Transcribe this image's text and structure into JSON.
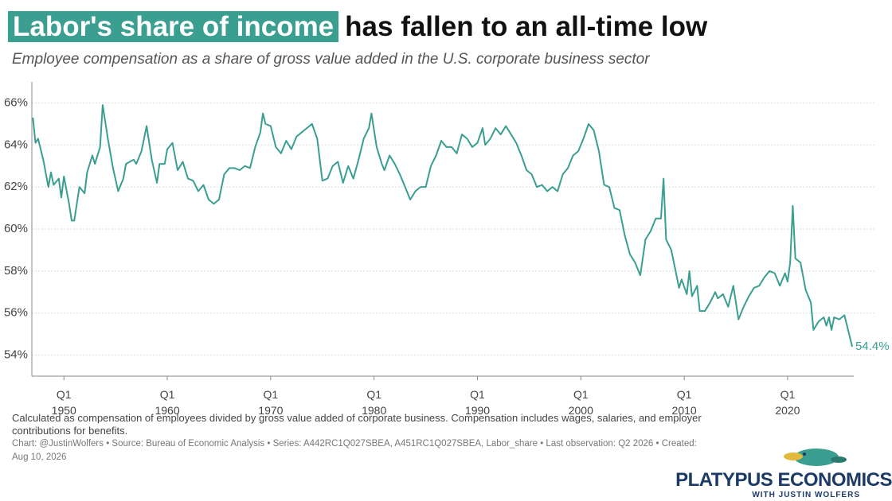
{
  "chart_data": {
    "type": "line",
    "title": [
      "Labor's share of income",
      "has fallen to an all-time low"
    ],
    "subtitle": "Employee compensation as a share of gross value added in the U.S. corporate business sector",
    "note": "Calculated as compensation of employees divided by gross value added of corporate business. Compensation includes wages, salaries, and employer contributions for benefits.",
    "credit": "Chart: @JustinWolfers • Source: Bureau of Economic Analysis • Series: A442RC1Q027SBEA, A451RC1Q027SBEA, Labor_share • Last observation: Q2 2026 • Created: Aug 10, 2026",
    "logo": {
      "name": "PLATYPUS ECONOMICS",
      "tagline": "WITH JUSTIN WOLFERS"
    },
    "xlim": [
      1946.9,
      2026.4
    ],
    "xticks": [
      {
        "value": 1950,
        "label": "Q1\n1950"
      },
      {
        "value": 1960,
        "label": "Q1\n1960"
      },
      {
        "value": 1970,
        "label": "Q1\n1970"
      },
      {
        "value": 1980,
        "label": "Q1\n1980"
      },
      {
        "value": 1990,
        "label": "Q1\n1990"
      },
      {
        "value": 2000,
        "label": "Q1\n2000"
      },
      {
        "value": 2010,
        "label": "Q1\n2010"
      },
      {
        "value": 2020,
        "label": "Q1\n2020"
      }
    ],
    "ylim": [
      53,
      67
    ],
    "yticks": [
      {
        "value": 54,
        "label": "54%"
      },
      {
        "value": 56,
        "label": "56%"
      },
      {
        "value": 58,
        "label": "58%"
      },
      {
        "value": 60,
        "label": "60%"
      },
      {
        "value": 62,
        "label": "62%"
      },
      {
        "value": 64,
        "label": "64%"
      },
      {
        "value": 66,
        "label": "66%"
      }
    ],
    "grid": true,
    "x": [
      1947.0,
      1947.25,
      1947.5,
      1948,
      1948.5,
      1948.75,
      1949,
      1949.5,
      1949.75,
      1950,
      1950.5,
      1950.75,
      1951,
      1951.5,
      1952,
      1952.25,
      1952.75,
      1953,
      1953.5,
      1953.75,
      1954.25,
      1954.75,
      1955.25,
      1955.75,
      1956,
      1956.75,
      1957,
      1957.5,
      1958,
      1958.5,
      1959,
      1959.25,
      1959.75,
      1960,
      1960.5,
      1961,
      1961.5,
      1962,
      1962.5,
      1963,
      1963.5,
      1964,
      1964.5,
      1965,
      1965.5,
      1966,
      1966.5,
      1967,
      1967.5,
      1968,
      1968.5,
      1969,
      1969.25,
      1969.5,
      1970,
      1970.5,
      1971,
      1971.5,
      1972,
      1972.5,
      1973,
      1973.5,
      1974,
      1974.5,
      1975,
      1975.5,
      1976,
      1976.5,
      1977,
      1977.5,
      1978,
      1978.5,
      1979,
      1979.5,
      1979.75,
      1980.25,
      1980.75,
      1981,
      1981.5,
      1982,
      1982.5,
      1983,
      1983.5,
      1984,
      1984.5,
      1985,
      1985.5,
      1986,
      1986.5,
      1987,
      1987.5,
      1988,
      1988.5,
      1989,
      1989.5,
      1990,
      1990.5,
      1990.75,
      1991.25,
      1991.75,
      1992.25,
      1992.75,
      1993.25,
      1993.75,
      1994.25,
      1994.75,
      1995.25,
      1995.75,
      1996.25,
      1996.75,
      1997.25,
      1997.75,
      1998.25,
      1998.75,
      1999.25,
      1999.75,
      2000.25,
      2000.75,
      2001.25,
      2001.75,
      2002.25,
      2002.75,
      2003.25,
      2003.75,
      2004.25,
      2004.75,
      2005.25,
      2005.75,
      2006.25,
      2006.75,
      2007.25,
      2007.75,
      2008,
      2008.25,
      2008.75,
      2009.25,
      2009.5,
      2009.75,
      2010.25,
      2010.5,
      2010.75,
      2011.25,
      2011.5,
      2012,
      2012.5,
      2013,
      2013.25,
      2013.75,
      2014.25,
      2014.75,
      2015.25,
      2015.75,
      2016.25,
      2016.75,
      2017.25,
      2017.75,
      2018.25,
      2018.75,
      2019.25,
      2019.75,
      2020,
      2020.25,
      2020.5,
      2020.75,
      2021.25,
      2021.75,
      2022.25,
      2022.5,
      2023,
      2023.5,
      2023.75,
      2024,
      2024.25,
      2024.5,
      2025,
      2025.5,
      2026.25
    ],
    "series": [
      {
        "name": "Labor share",
        "color": "#3a9e91",
        "values": [
          65.3,
          64.1,
          64.3,
          63.3,
          62.0,
          62.7,
          62.1,
          62.4,
          61.5,
          62.5,
          61.2,
          60.4,
          60.4,
          62.0,
          61.7,
          62.7,
          63.5,
          63.1,
          63.9,
          65.9,
          64.3,
          62.9,
          61.8,
          62.4,
          63.1,
          63.3,
          63.1,
          63.7,
          64.9,
          63.3,
          62.2,
          63.1,
          63.1,
          63.8,
          64.1,
          62.8,
          63.2,
          62.4,
          62.3,
          61.8,
          62.1,
          61.4,
          61.2,
          61.4,
          62.6,
          62.9,
          62.9,
          62.8,
          63.0,
          62.9,
          63.9,
          64.6,
          65.5,
          65.0,
          64.9,
          63.9,
          63.6,
          64.2,
          63.8,
          64.4,
          64.6,
          64.8,
          65.0,
          64.3,
          62.3,
          62.4,
          63.0,
          63.2,
          62.2,
          63.0,
          62.4,
          63.3,
          64.3,
          64.8,
          65.5,
          63.9,
          63.1,
          62.8,
          63.5,
          63.1,
          62.6,
          62.0,
          61.4,
          61.8,
          62.0,
          62.0,
          63.0,
          63.5,
          64.2,
          63.9,
          63.9,
          63.6,
          64.5,
          64.3,
          63.9,
          64.1,
          64.8,
          64.0,
          64.3,
          64.8,
          64.5,
          64.9,
          64.5,
          64.1,
          63.5,
          62.8,
          62.6,
          62.0,
          62.1,
          61.8,
          62.0,
          61.8,
          62.6,
          62.9,
          63.5,
          63.7,
          64.3,
          65.0,
          64.7,
          63.7,
          62.1,
          62.0,
          61.0,
          60.9,
          59.7,
          58.8,
          58.4,
          57.8,
          59.5,
          59.9,
          60.5,
          60.5,
          62.4,
          59.5,
          59.0,
          57.8,
          57.2,
          57.6,
          56.9,
          58.0,
          56.8,
          57.3,
          56.1,
          56.1,
          56.5,
          57.0,
          56.7,
          56.9,
          56.3,
          57.3,
          55.7,
          56.3,
          56.8,
          57.2,
          57.3,
          57.7,
          58.0,
          57.9,
          57.3,
          57.9,
          57.5,
          58.4,
          61.1,
          58.6,
          58.4,
          57.1,
          56.5,
          55.2,
          55.6,
          55.8,
          55.4,
          55.8,
          55.2,
          55.8,
          55.7,
          55.9,
          54.4
        ],
        "value_labels": [
          null,
          null,
          null,
          null,
          null,
          null,
          null,
          null,
          null,
          null,
          null,
          null,
          null,
          null,
          null,
          null,
          null,
          null,
          null,
          null,
          null,
          null,
          null,
          null,
          null,
          null,
          null,
          null,
          null,
          null,
          null,
          null,
          null,
          null,
          null,
          null,
          null,
          null,
          null,
          null,
          null,
          null,
          null,
          null,
          null,
          null,
          null,
          null,
          null,
          null,
          null,
          null,
          null,
          null,
          null,
          null,
          null,
          null,
          null,
          null,
          null,
          null,
          null,
          null,
          null,
          null,
          null,
          null,
          null,
          null,
          null,
          null,
          null,
          null,
          null,
          null,
          null,
          null,
          null,
          null,
          null,
          null,
          null,
          null,
          null,
          null,
          null,
          null,
          null,
          null,
          null,
          null,
          null,
          null,
          null,
          null,
          null,
          null,
          null,
          null,
          null,
          null,
          null,
          null,
          null,
          null,
          null,
          null,
          null,
          null,
          null,
          null,
          null,
          null,
          null,
          null,
          null,
          null,
          null,
          null,
          null,
          null,
          null,
          null,
          null,
          null,
          null,
          null,
          null,
          null,
          null,
          null,
          null,
          null,
          null,
          null,
          null,
          null,
          null,
          null,
          null,
          null,
          null,
          null,
          null,
          null,
          null,
          null,
          null,
          null,
          null,
          null,
          null,
          null,
          null,
          null,
          null,
          null,
          null,
          null,
          null,
          null,
          null,
          null,
          null,
          null,
          null,
          null,
          null,
          null,
          null,
          null,
          null,
          null,
          null,
          null,
          "54.4%"
        ]
      }
    ]
  }
}
